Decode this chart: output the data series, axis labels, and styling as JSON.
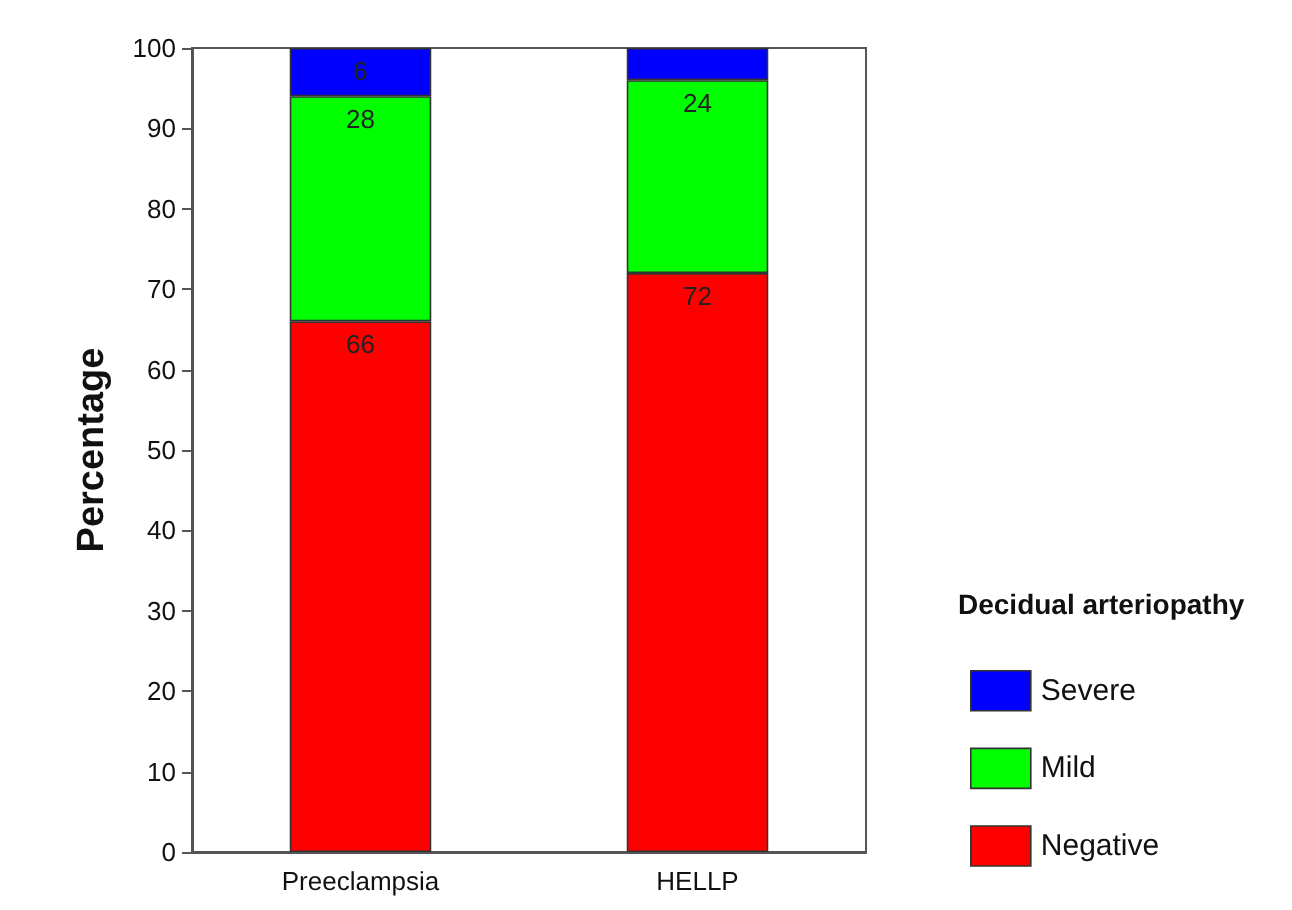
{
  "chart_data": {
    "type": "bar",
    "stacked": true,
    "ylabel": "Percentage",
    "legend_title": "Decidual arteriopathy",
    "categories": [
      "Preeclampsia",
      "HELLP"
    ],
    "series": [
      {
        "name": "Negative",
        "color": "#ff0000",
        "values": [
          66,
          72
        ],
        "value_labels": [
          "66",
          "72"
        ]
      },
      {
        "name": "Mild",
        "color": "#00ff00",
        "values": [
          28,
          24
        ],
        "value_labels": [
          "28",
          "24"
        ]
      },
      {
        "name": "Severe",
        "color": "#0000ff",
        "values": [
          6,
          4
        ],
        "value_labels": [
          "6",
          null
        ]
      }
    ],
    "ylim": [
      0,
      100
    ],
    "yticks": [
      0,
      10,
      20,
      30,
      40,
      50,
      60,
      70,
      80,
      90,
      100
    ],
    "grid": false,
    "legend": "right"
  }
}
